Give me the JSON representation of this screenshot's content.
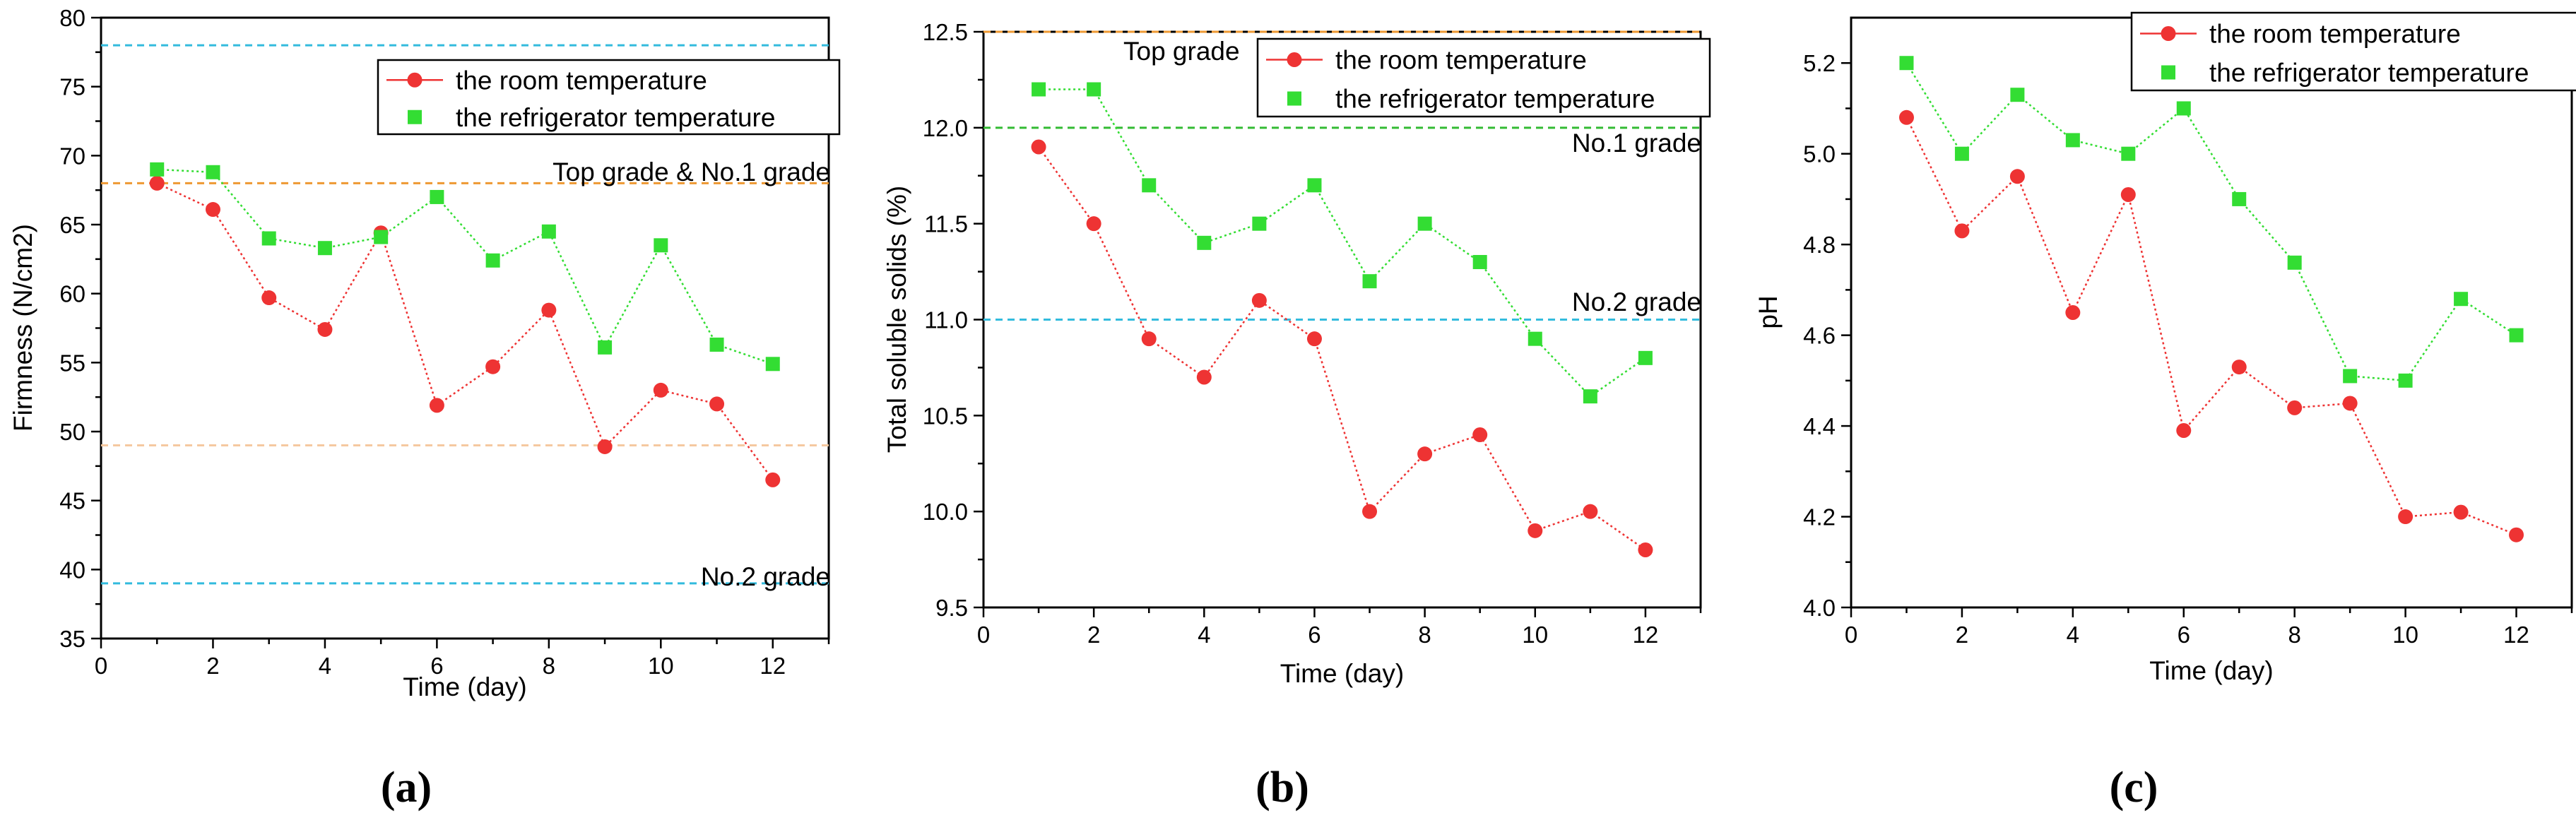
{
  "chart_data": [
    {
      "type": "line",
      "panel_label": "(a)",
      "title": "",
      "xlabel": "Time (day)",
      "ylabel": "Firmness (N/cm2)",
      "xlim": [
        0,
        13
      ],
      "ylim": [
        35,
        80
      ],
      "xticks": [
        0,
        2,
        4,
        6,
        8,
        10,
        12
      ],
      "yticks": [
        35,
        40,
        45,
        50,
        55,
        60,
        65,
        70,
        75,
        80
      ],
      "x": [
        1,
        2,
        3,
        4,
        5,
        6,
        7,
        8,
        9,
        10,
        11,
        12
      ],
      "series": [
        {
          "name": "the room temperature",
          "color": "#ee3333",
          "marker": "circle",
          "values": [
            68.0,
            66.1,
            59.7,
            57.4,
            64.4,
            51.9,
            54.7,
            58.8,
            48.9,
            53.0,
            52.0,
            46.5
          ]
        },
        {
          "name": "the refrigerator temperature",
          "color": "#33dd33",
          "marker": "square",
          "values": [
            69.0,
            68.8,
            64.0,
            63.3,
            64.1,
            67.0,
            62.4,
            64.5,
            56.1,
            63.5,
            56.3,
            54.9
          ]
        }
      ],
      "reference_lines": [
        {
          "y": 78,
          "color": "#33bbdd",
          "label": ""
        },
        {
          "y": 68,
          "color": "#ee9933",
          "label": "Top grade & No.1 grade"
        },
        {
          "y": 49,
          "color": "#f5c9a0",
          "label": ""
        },
        {
          "y": 39,
          "color": "#33bbdd",
          "label": "No.2 grade"
        }
      ],
      "legend_location": "top-right"
    },
    {
      "type": "line",
      "panel_label": "(b)",
      "title": "",
      "xlabel": "Time (day)",
      "ylabel": "Total soluble solids (%)",
      "xlim": [
        0,
        13
      ],
      "ylim": [
        9.5,
        12.5
      ],
      "xticks": [
        0,
        2,
        4,
        6,
        8,
        10,
        12
      ],
      "yticks": [
        9.5,
        10.0,
        10.5,
        11.0,
        11.5,
        12.0,
        12.5
      ],
      "x": [
        1,
        2,
        3,
        4,
        5,
        6,
        7,
        8,
        9,
        10,
        11,
        12
      ],
      "series": [
        {
          "name": "the room temperature",
          "color": "#ee3333",
          "marker": "circle",
          "values": [
            11.9,
            11.5,
            10.9,
            10.7,
            11.1,
            10.9,
            10.0,
            10.3,
            10.4,
            9.9,
            10.0,
            9.8
          ]
        },
        {
          "name": "the refrigerator temperature",
          "color": "#33dd33",
          "marker": "square",
          "values": [
            12.2,
            12.2,
            11.7,
            11.4,
            11.5,
            11.7,
            11.2,
            11.5,
            11.3,
            10.9,
            10.6,
            10.8
          ]
        }
      ],
      "reference_lines": [
        {
          "y": 12.5,
          "color": "#ee9933",
          "label": "Top grade"
        },
        {
          "y": 12.0,
          "color": "#33bb33",
          "label": "No.1 grade"
        },
        {
          "y": 11.0,
          "color": "#33bbdd",
          "label": "No.2 grade"
        }
      ],
      "legend_location": "top-right"
    },
    {
      "type": "line",
      "panel_label": "(c)",
      "title": "",
      "xlabel": "Time (day)",
      "ylabel": "pH",
      "xlim": [
        0,
        13
      ],
      "ylim": [
        4.0,
        5.3
      ],
      "xticks": [
        0,
        2,
        4,
        6,
        8,
        10,
        12
      ],
      "yticks": [
        4.0,
        4.2,
        4.4,
        4.6,
        4.8,
        5.0,
        5.2
      ],
      "x": [
        1,
        2,
        3,
        4,
        5,
        6,
        7,
        8,
        9,
        10,
        11,
        12
      ],
      "series": [
        {
          "name": "the room temperature",
          "color": "#ee3333",
          "marker": "circle",
          "values": [
            5.08,
            4.83,
            4.95,
            4.65,
            4.91,
            4.39,
            4.53,
            4.44,
            4.45,
            4.2,
            4.21,
            4.16
          ]
        },
        {
          "name": "the refrigerator temperature",
          "color": "#33dd33",
          "marker": "square",
          "values": [
            5.2,
            5.0,
            5.13,
            5.03,
            5.0,
            5.1,
            4.9,
            4.76,
            4.51,
            4.5,
            4.68,
            4.6
          ]
        }
      ],
      "reference_lines": [],
      "legend_location": "top-right"
    }
  ]
}
